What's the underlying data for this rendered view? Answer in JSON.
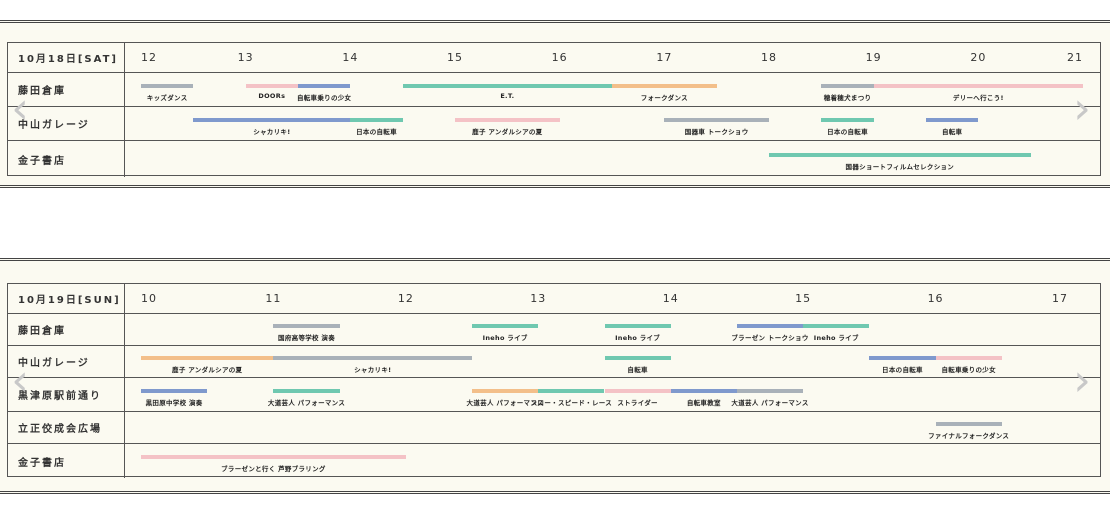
{
  "colors": {
    "gray": "#a9b1b9",
    "pink": "#f4c2c6",
    "blue": "#7f99cd",
    "green": "#6fc8b0",
    "orange": "#f3bf8a"
  },
  "nav": {
    "prev_icon": "chevron-left-icon",
    "next_icon": "chevron-right-icon",
    "prev_glyph": "‹",
    "next_glyph": "›"
  },
  "days": [
    {
      "header": "10月18日[SAT]",
      "start_hour": 12,
      "end_hour": 21,
      "hours": [
        "12",
        "13",
        "14",
        "15",
        "16",
        "17",
        "18",
        "19",
        "20",
        "21"
      ],
      "rows": [
        {
          "venue": "藤田倉庫",
          "events": [
            {
              "label": "キッズダンス",
              "start": 12,
              "end": 12.5,
              "color": "gray"
            },
            {
              "label": "DOORs",
              "start": 13,
              "end": 13.5,
              "color": "pink"
            },
            {
              "label": "自転車乗りの少女",
              "start": 13.5,
              "end": 14,
              "color": "blue"
            },
            {
              "label": "E.T.",
              "start": 14.5,
              "end": 16.5,
              "color": "green"
            },
            {
              "label": "フォークダンス",
              "start": 16.5,
              "end": 17.5,
              "color": "orange"
            },
            {
              "label": "穂着穂犬まつり",
              "start": 18.5,
              "end": 19,
              "color": "gray"
            },
            {
              "label": "デリーへ行こう!",
              "start": 19,
              "end": 21,
              "color": "pink"
            }
          ]
        },
        {
          "venue": "中山ガレージ",
          "events": [
            {
              "label": "シャカリキ!",
              "start": 12.5,
              "end": 14,
              "color": "blue"
            },
            {
              "label": "日本の自転車",
              "start": 14,
              "end": 14.5,
              "color": "green"
            },
            {
              "label": "鹿子 アンダルシアの夏",
              "start": 15,
              "end": 16,
              "color": "pink"
            },
            {
              "label": "国器車 トークショウ",
              "start": 17,
              "end": 18,
              "color": "gray"
            },
            {
              "label": "日本の自転車",
              "start": 18.5,
              "end": 19,
              "color": "green"
            },
            {
              "label": "自転車",
              "start": 19.5,
              "end": 20,
              "color": "blue"
            }
          ]
        },
        {
          "venue": "金子書店",
          "events": [
            {
              "label": "国器ショートフィルムセレクション",
              "start": 18,
              "end": 20.5,
              "color": "green"
            }
          ]
        }
      ]
    },
    {
      "header": "10月19日[SUN]",
      "start_hour": 10,
      "end_hour": 17,
      "hours": [
        "10",
        "11",
        "12",
        "13",
        "14",
        "15",
        "16",
        "17"
      ],
      "rows": [
        {
          "venue": "藤田倉庫",
          "events": [
            {
              "label": "国府高等学校 演奏",
              "start": 11,
              "end": 11.5,
              "color": "gray"
            },
            {
              "label": "Ineho ライブ",
              "start": 12.5,
              "end": 13,
              "color": "green"
            },
            {
              "label": "Ineho ライブ",
              "start": 13.5,
              "end": 14,
              "color": "green"
            },
            {
              "label": "ブラーゼン トークショウ",
              "start": 14.5,
              "end": 15,
              "color": "blue"
            },
            {
              "label": "Ineho ライブ",
              "start": 15,
              "end": 15.5,
              "color": "green"
            }
          ]
        },
        {
          "venue": "中山ガレージ",
          "events": [
            {
              "label": "鹿子 アンダルシアの夏",
              "start": 10,
              "end": 11,
              "color": "orange"
            },
            {
              "label": "シャカリキ!",
              "start": 11,
              "end": 12.5,
              "color": "gray"
            },
            {
              "label": "自転車",
              "start": 13.5,
              "end": 14,
              "color": "green"
            },
            {
              "label": "日本の自転車",
              "start": 15.5,
              "end": 16,
              "color": "blue"
            },
            {
              "label": "自転車乗りの少女",
              "start": 16,
              "end": 16.5,
              "color": "pink"
            }
          ]
        },
        {
          "venue": "黒津原駅前通り",
          "events": [
            {
              "label": "黒田原中学校 演奏",
              "start": 10,
              "end": 10.5,
              "color": "blue"
            },
            {
              "label": "大道芸人 パフォーマンス",
              "start": 11,
              "end": 11.5,
              "color": "green"
            },
            {
              "label": "大道芸人 パフォーマンス",
              "start": 12.5,
              "end": 13,
              "color": "orange"
            },
            {
              "label": "スロー・スピード・レース",
              "start": 13,
              "end": 13.5,
              "color": "green"
            },
            {
              "label": "ストライダー",
              "start": 13.5,
              "end": 14,
              "color": "pink"
            },
            {
              "label": "自転車教室",
              "start": 14,
              "end": 14.5,
              "color": "blue"
            },
            {
              "label": "大道芸人 パフォーマンス",
              "start": 14.5,
              "end": 15,
              "color": "gray"
            }
          ]
        },
        {
          "venue": "立正佼成会広場",
          "events": [
            {
              "label": "ファイナルフォークダンス",
              "start": 16,
              "end": 16.5,
              "color": "gray"
            }
          ]
        },
        {
          "venue": "金子書店",
          "events": [
            {
              "label": "ブラーゼンと行く 芦野ブラリング",
              "start": 10,
              "end": 12,
              "color": "pink"
            }
          ]
        }
      ]
    }
  ]
}
